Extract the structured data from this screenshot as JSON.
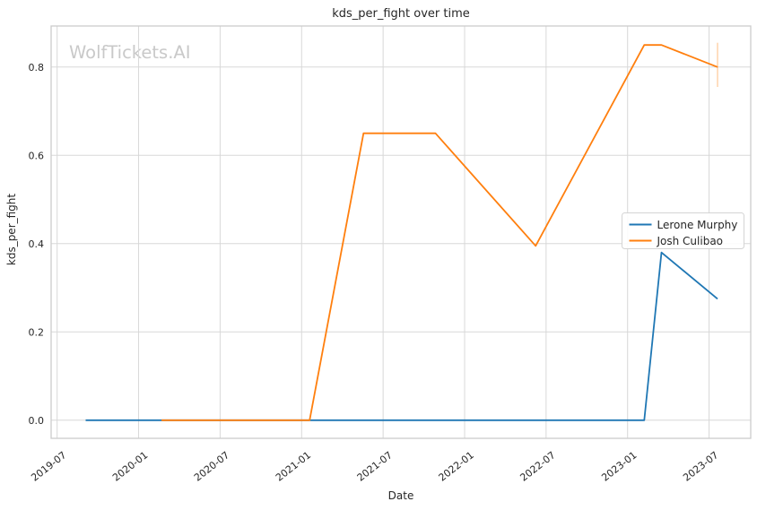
{
  "watermark": "WolfTickets.AI",
  "colors": {
    "background": "#ffffff",
    "text": "#262626",
    "grid": "#d8d8d8",
    "frame": "#cccccc",
    "watermark": "#c9c9c9",
    "lerone_murphy": "#1f77b4",
    "josh_culibao": "#ff7f0e"
  },
  "chart_data": {
    "type": "line",
    "title": "kds_per_fight over time",
    "xlabel": "Date",
    "ylabel": "kds_per_fight",
    "x_ticks": [
      "2019-07",
      "2020-01",
      "2020-07",
      "2021-01",
      "2021-07",
      "2022-01",
      "2022-07",
      "2023-01",
      "2023-07"
    ],
    "y_ticks": [
      "0.0",
      "0.2",
      "0.4",
      "0.6",
      "0.8"
    ],
    "xlim": [
      "2019-06-18",
      "2023-10-03"
    ],
    "ylim": [
      -0.041,
      0.893
    ],
    "grid": true,
    "legend_position": "center-right",
    "series": [
      {
        "name": "Lerone Murphy",
        "color": "#1f77b4",
        "points": [
          [
            "2019-09-04",
            0.0
          ],
          [
            "2023-02-08",
            0.0
          ],
          [
            "2023-03-16",
            0.38
          ],
          [
            "2023-07-20",
            0.275
          ]
        ]
      },
      {
        "name": "Josh Culibao",
        "color": "#ff7f0e",
        "points": [
          [
            "2020-02-22",
            0.0
          ],
          [
            "2021-01-19",
            0.0
          ],
          [
            "2021-05-18",
            0.65
          ],
          [
            "2021-10-27",
            0.65
          ],
          [
            "2022-06-08",
            0.395
          ],
          [
            "2023-02-08",
            0.85
          ],
          [
            "2023-03-16",
            0.85
          ],
          [
            "2023-07-20",
            0.8
          ]
        ]
      }
    ],
    "error_bar": {
      "series": "Josh Culibao",
      "x": "2023-07-20",
      "low": 0.755,
      "high": 0.855,
      "opacity": 0.35
    }
  }
}
